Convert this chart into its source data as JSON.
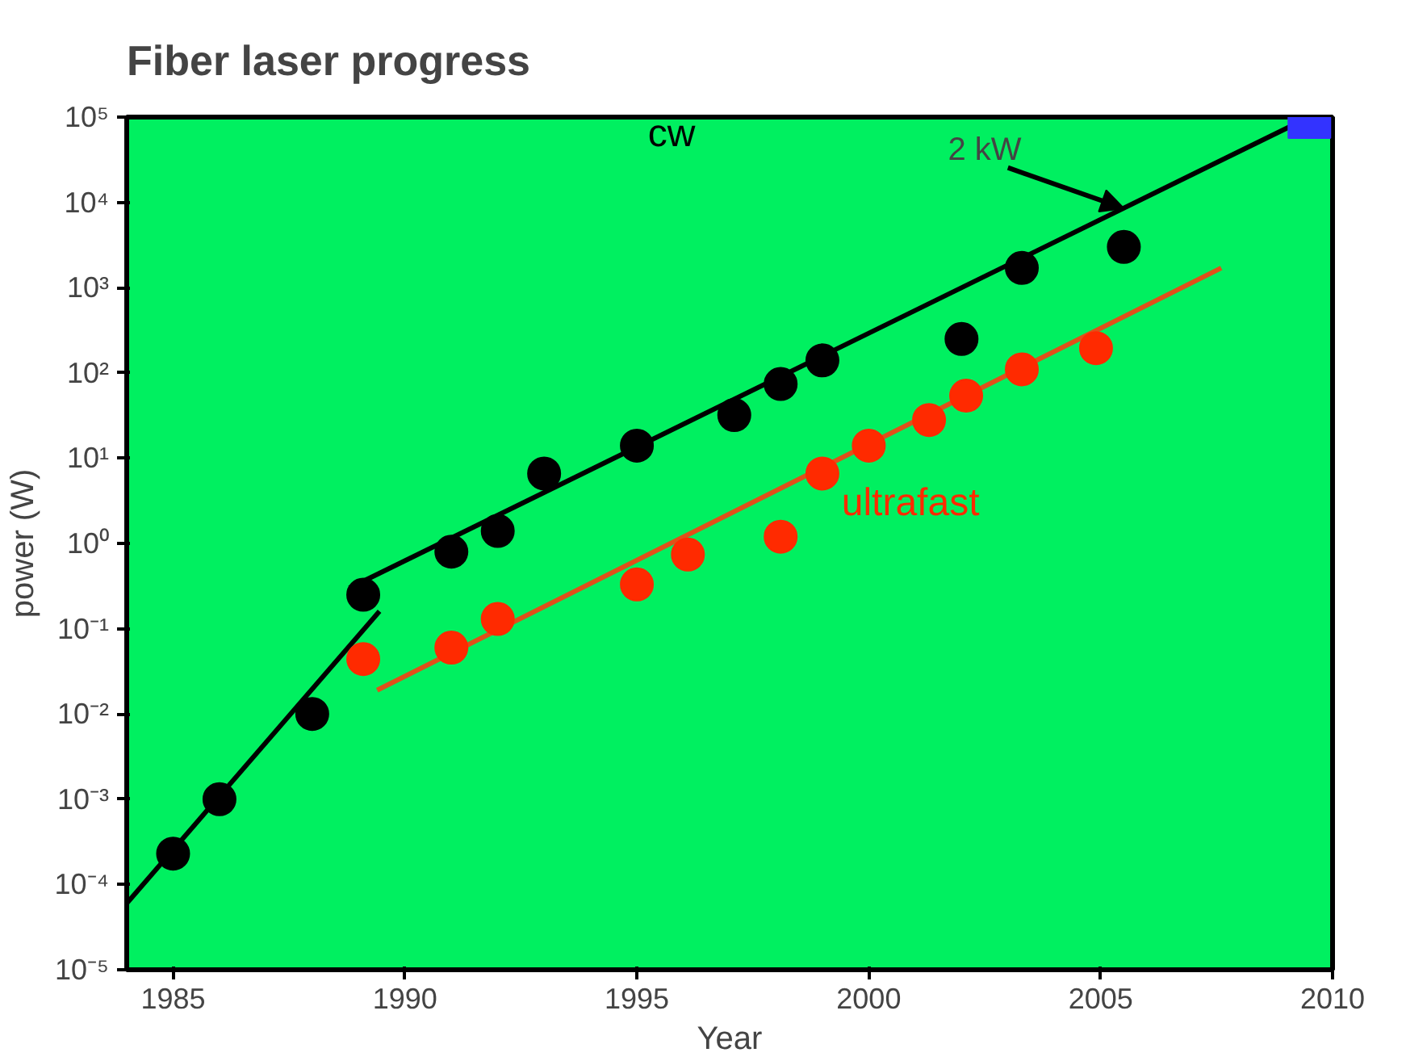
{
  "chart_data": {
    "type": "scatter",
    "title": "Fiber laser progress",
    "xlabel": "Year",
    "ylabel": "power (W)",
    "log": "y",
    "grid": false,
    "legend": false,
    "marker": "circle",
    "xlim": [
      1984,
      2010
    ],
    "ylim": [
      1e-05,
      100000
    ],
    "xticks": [
      1985,
      1990,
      1995,
      2000,
      2005,
      2010
    ],
    "yticks": [
      {
        "value": 1e-05,
        "label": "10⁻⁵"
      },
      {
        "value": 0.0001,
        "label": "10⁻⁴"
      },
      {
        "value": 0.001,
        "label": "10⁻³"
      },
      {
        "value": 0.01,
        "label": "10⁻²"
      },
      {
        "value": 0.1,
        "label": "10⁻¹"
      },
      {
        "value": 1,
        "label": "10⁰"
      },
      {
        "value": 10,
        "label": "10¹"
      },
      {
        "value": 100,
        "label": "10²"
      },
      {
        "value": 1000,
        "label": "10³"
      },
      {
        "value": 10000,
        "label": "10⁴"
      },
      {
        "value": 100000,
        "label": "10⁵"
      }
    ],
    "annotations": [
      {
        "text": "2 kW",
        "x": 2005.5,
        "y": 8500
      }
    ],
    "series": [
      {
        "name": "cw",
        "color": "#000000",
        "x": [
          1985,
          1986,
          1988,
          1989.1,
          1991,
          1992,
          1993,
          1995,
          1997.1,
          1998.1,
          1999,
          2002,
          2003.3,
          2005.5
        ],
        "values": [
          0.00023,
          0.001,
          0.01,
          0.25,
          0.8,
          1.4,
          6.6,
          14,
          32,
          74,
          140,
          250,
          1700,
          3000
        ]
      },
      {
        "name": "ultrafast",
        "color": "#ff2a00",
        "x": [
          1989.1,
          1991,
          1992,
          1995,
          1996.1,
          1998.1,
          1999,
          2000,
          2001.3,
          2002.1,
          2003.3,
          2004.9
        ],
        "values": [
          0.044,
          0.06,
          0.13,
          0.33,
          0.74,
          1.2,
          6.6,
          14,
          28,
          54,
          110,
          195
        ]
      },
      {
        "marker": "square",
        "color": "#3333ff",
        "x": [
          2009.5
        ],
        "values": [
          100000
        ]
      },
      {
        "type": "line",
        "marker": "none",
        "color": "#000000",
        "x": [
          1984,
          1989.45
        ],
        "values": [
          6e-05,
          0.16
        ]
      },
      {
        "type": "line",
        "marker": "none",
        "color": "#000000",
        "x": [
          1988.8,
          2009.5
        ],
        "values": [
          0.3,
          100000
        ]
      },
      {
        "type": "line",
        "marker": "none",
        "color": "#e0501a",
        "x": [
          1989.4,
          2007.6
        ],
        "values": [
          0.019,
          1700
        ]
      }
    ]
  }
}
